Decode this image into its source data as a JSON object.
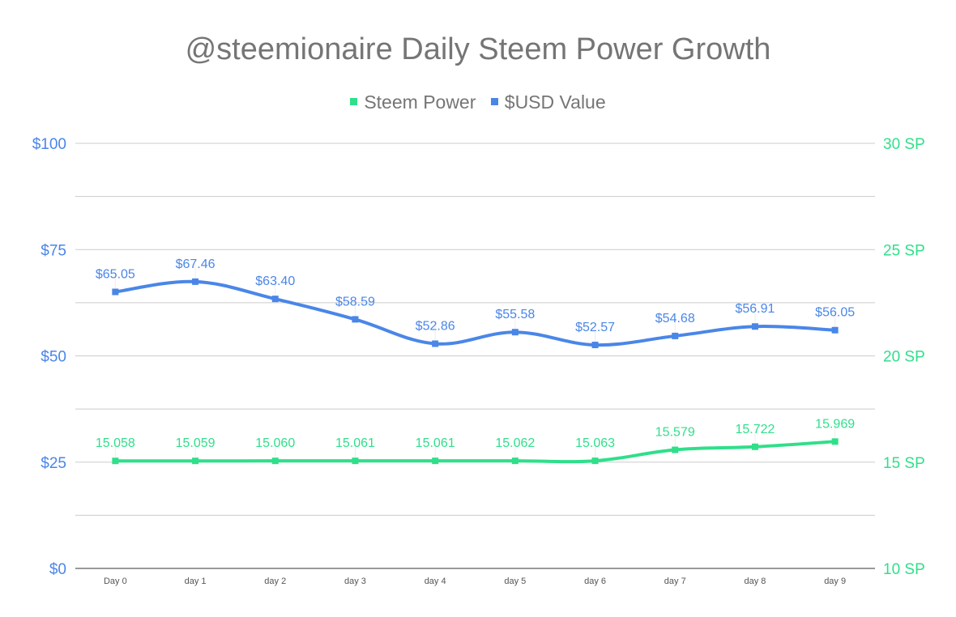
{
  "chart_data": {
    "type": "line",
    "title": "@steemionaire Daily Steem Power Growth",
    "categories": [
      "Day 0",
      "day 1",
      "day 2",
      "day 3",
      "day 4",
      "day 5",
      "day 6",
      "day 7",
      "day 8",
      "day 9"
    ],
    "series": [
      {
        "name": "Steem Power",
        "axis": "right",
        "color": "#2fdf8a",
        "values": [
          15.058,
          15.059,
          15.06,
          15.061,
          15.061,
          15.062,
          15.063,
          15.579,
          15.722,
          15.969
        ],
        "labels": [
          "15.058",
          "15.059",
          "15.060",
          "15.061",
          "15.061",
          "15.062",
          "15.063",
          "15.579",
          "15.722",
          "15.969"
        ]
      },
      {
        "name": "$USD Value",
        "axis": "left",
        "color": "#4a86e8",
        "values": [
          65.05,
          67.46,
          63.4,
          58.59,
          52.86,
          55.58,
          52.57,
          54.68,
          56.91,
          56.05
        ],
        "labels": [
          "$65.05",
          "$67.46",
          "$63.40",
          "$58.59",
          "$52.86",
          "$55.58",
          "$52.57",
          "$54.68",
          "$56.91",
          "$56.05"
        ]
      }
    ],
    "left_axis": {
      "ylim": [
        0,
        100
      ],
      "ticks": [
        0,
        25,
        50,
        75,
        100
      ],
      "tick_labels": [
        "$0",
        "$25",
        "$50",
        "$75",
        "$100"
      ],
      "color": "#4a86e8"
    },
    "right_axis": {
      "ylim": [
        10,
        30
      ],
      "ticks": [
        10,
        15,
        20,
        25,
        30
      ],
      "tick_labels": [
        "10 SP",
        "15 SP",
        "20 SP",
        "25 SP",
        "30 SP"
      ],
      "color": "#2fdf8a"
    },
    "grid": true,
    "smooth": true,
    "legend": "top-center"
  }
}
